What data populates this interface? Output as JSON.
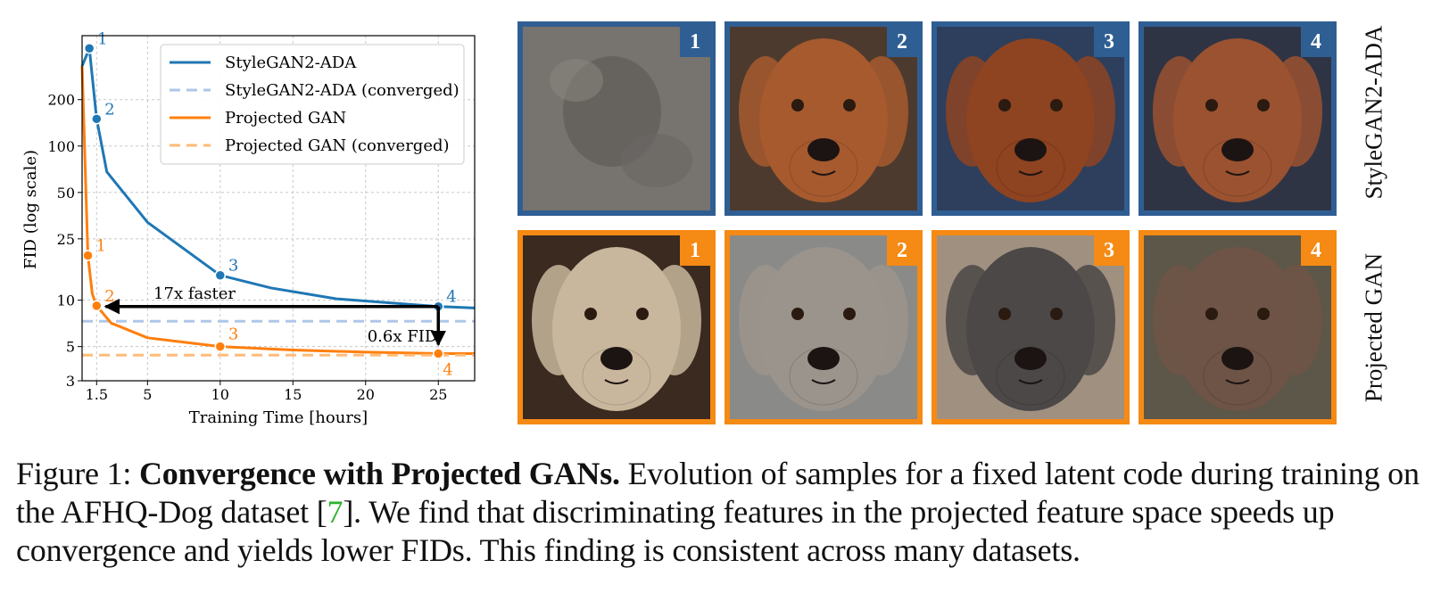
{
  "chart_data": {
    "type": "line",
    "xlabel": "Training Time [hours]",
    "ylabel": "FID (log scale)",
    "xlim": [
      0.5,
      27.5
    ],
    "ylim": [
      3,
      520
    ],
    "yscale": "log",
    "xticks": [
      1.5,
      5,
      10,
      15,
      20,
      25
    ],
    "xticklabels": [
      "1.5",
      "5",
      "10",
      "15",
      "20",
      "25"
    ],
    "yticks": [
      3,
      5,
      10,
      25,
      50,
      100,
      200
    ],
    "yticklabels": [
      "3",
      "5",
      "10",
      "25",
      "50",
      "100",
      "200"
    ],
    "grid": true,
    "legend_position": "top-right",
    "series": [
      {
        "name": "StyleGAN2-ADA",
        "color": "#1f77b4",
        "style": "solid",
        "x": [
          0.5,
          1.0,
          1.5,
          2.2,
          5.0,
          10.0,
          13.5,
          18.0,
          25.0,
          27.5
        ],
        "y": [
          330,
          430,
          150,
          68,
          32,
          14.5,
          12,
          10.2,
          9.1,
          8.9
        ]
      },
      {
        "name": "StyleGAN2-ADA (converged)",
        "color": "#aec7e8",
        "style": "dashed",
        "value": 7.3
      },
      {
        "name": "Projected GAN",
        "color": "#ff7f0e",
        "style": "solid",
        "x": [
          0.5,
          0.9,
          1.2,
          1.5,
          2.5,
          5.0,
          10.0,
          15.0,
          20.0,
          25.0,
          27.5
        ],
        "y": [
          330,
          19.5,
          11,
          9.2,
          7.1,
          5.7,
          5.0,
          4.75,
          4.6,
          4.5,
          4.5
        ]
      },
      {
        "name": "Projected GAN (converged)",
        "color": "#ffbb78",
        "style": "dashed",
        "value": 4.4
      }
    ],
    "markers": [
      {
        "series": "StyleGAN2-ADA",
        "label": "1",
        "x": 1.0,
        "y": 430
      },
      {
        "series": "StyleGAN2-ADA",
        "label": "2",
        "x": 1.5,
        "y": 150
      },
      {
        "series": "StyleGAN2-ADA",
        "label": "3",
        "x": 10.0,
        "y": 14.5
      },
      {
        "series": "StyleGAN2-ADA",
        "label": "4",
        "x": 25.0,
        "y": 9.1
      },
      {
        "series": "Projected GAN",
        "label": "1",
        "x": 0.9,
        "y": 19.5
      },
      {
        "series": "Projected GAN",
        "label": "2",
        "x": 1.5,
        "y": 9.2
      },
      {
        "series": "Projected GAN",
        "label": "3",
        "x": 10.0,
        "y": 5.0
      },
      {
        "series": "Projected GAN",
        "label": "4",
        "x": 25.0,
        "y": 4.5
      }
    ],
    "annotations": [
      {
        "text": "17x faster",
        "from": [
          25.0,
          9.1
        ],
        "to": [
          1.5,
          9.1
        ]
      },
      {
        "text": "0.6x FID",
        "from": [
          25.0,
          9.1
        ],
        "to": [
          25.0,
          4.5
        ]
      }
    ]
  },
  "grid": {
    "rows": [
      {
        "label": "StyleGAN2-ADA",
        "color": "#2f5e93",
        "tiles": [
          "1",
          "2",
          "3",
          "4"
        ]
      },
      {
        "label": "Projected GAN",
        "color": "#f58a14",
        "tiles": [
          "1",
          "2",
          "3",
          "4"
        ]
      }
    ]
  },
  "caption": {
    "prefix": "Figure 1: ",
    "bold": "Convergence with Projected GANs.",
    "text1": " Evolution of samples for a fixed latent code during training on the AFHQ-Dog dataset [",
    "ref": "7",
    "text2": "]. We find that discriminating features in the projected feature space speeds up convergence and yields lower FIDs. This finding is consistent across many datasets."
  }
}
